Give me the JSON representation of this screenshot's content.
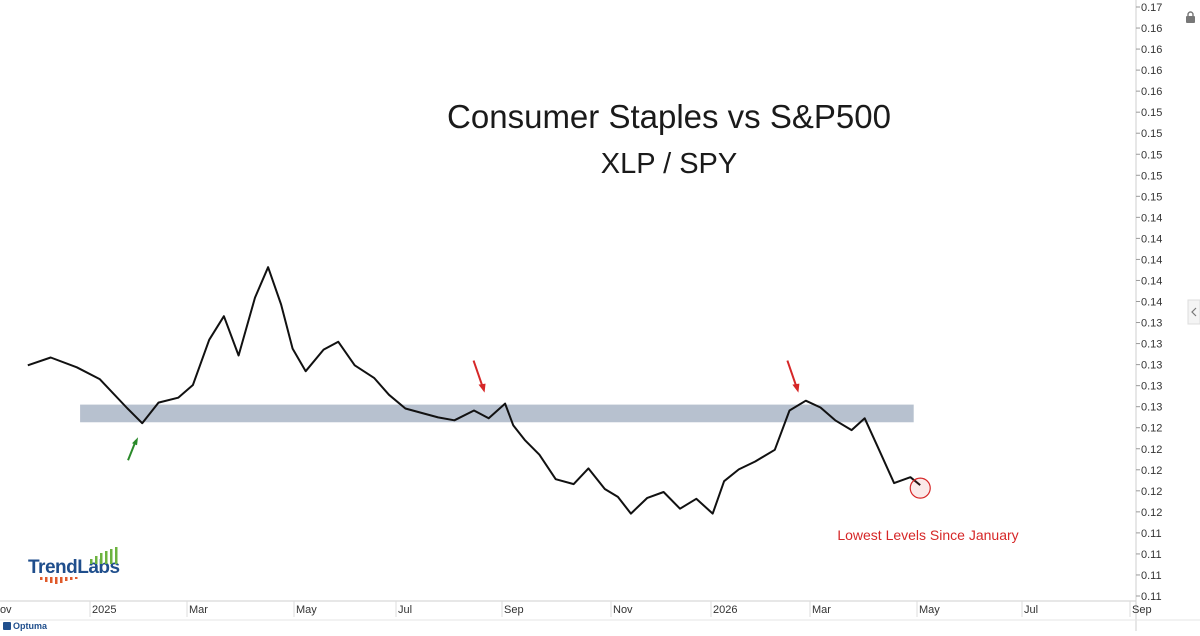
{
  "chart_data": {
    "type": "line",
    "title": "Consumer Staples vs S&P500",
    "subtitle": "XLP / SPY",
    "x_ticks": [
      "Nov",
      "2025",
      "Mar",
      "May",
      "Jul",
      "Sep",
      "Nov",
      "2026",
      "Mar",
      "May",
      "Jul",
      "Sep"
    ],
    "y_ticks": [
      "0.17",
      "0.16",
      "0.16",
      "0.16",
      "0.16",
      "0.15",
      "0.15",
      "0.15",
      "0.15",
      "0.15",
      "0.14",
      "0.14",
      "0.14",
      "0.14",
      "0.14",
      "0.13",
      "0.13",
      "0.13",
      "0.13",
      "0.13",
      "0.12",
      "0.12",
      "0.12",
      "0.12",
      "0.12",
      "0.11",
      "0.11",
      "0.11",
      "0.11"
    ],
    "ylim": [
      0.11,
      0.17
    ],
    "series": [
      {
        "color": "#111111",
        "x": [
          "2024-11-01",
          "2024-11-15",
          "2024-12-01",
          "2024-12-15",
          "2025-01-01",
          "2025-01-10",
          "2025-01-20",
          "2025-02-01",
          "2025-02-10",
          "2025-02-20",
          "2025-03-01",
          "2025-03-10",
          "2025-03-20",
          "2025-03-28",
          "2025-04-05",
          "2025-04-12",
          "2025-04-20",
          "2025-05-01",
          "2025-05-10",
          "2025-05-20",
          "2025-06-01",
          "2025-06-10",
          "2025-06-20",
          "2025-07-01",
          "2025-07-10",
          "2025-07-20",
          "2025-08-01",
          "2025-08-10",
          "2025-08-20",
          "2025-08-25",
          "2025-09-01",
          "2025-09-10",
          "2025-09-20",
          "2025-10-01",
          "2025-10-10",
          "2025-10-20",
          "2025-10-28",
          "2025-11-05",
          "2025-11-15",
          "2025-11-25",
          "2025-12-05",
          "2025-12-15",
          "2025-12-25",
          "2026-01-01",
          "2026-01-10",
          "2026-01-20",
          "2026-02-01",
          "2026-02-10",
          "2026-02-20",
          "2026-03-01",
          "2026-03-10",
          "2026-03-20",
          "2026-03-28",
          "2026-04-05",
          "2026-04-15",
          "2026-04-25",
          "2026-05-01"
        ],
        "values": [
          0.1336,
          0.1344,
          0.1334,
          0.1322,
          0.1292,
          0.1277,
          0.1298,
          0.1303,
          0.1316,
          0.1362,
          0.1386,
          0.1346,
          0.1405,
          0.1436,
          0.1398,
          0.1353,
          0.133,
          0.1352,
          0.136,
          0.1336,
          0.1323,
          0.1306,
          0.1292,
          0.1287,
          0.1283,
          0.128,
          0.129,
          0.1282,
          0.1297,
          0.1275,
          0.126,
          0.1245,
          0.122,
          0.1215,
          0.1231,
          0.121,
          0.1202,
          0.1185,
          0.1201,
          0.1207,
          0.119,
          0.12,
          0.1185,
          0.1218,
          0.123,
          0.1238,
          0.125,
          0.129,
          0.13,
          0.1293,
          0.128,
          0.127,
          0.1282,
          0.1253,
          0.1216,
          0.1222,
          0.1214
        ]
      }
    ],
    "band": {
      "from": 0.1278,
      "to": 0.1296,
      "color": "#b7c1cf",
      "x_from": "2024-12-03",
      "x_to": "2026-04-27"
    },
    "annotations": [
      {
        "text": "Lowest Levels Since January",
        "color": "#d62728"
      }
    ],
    "markers": [
      {
        "kind": "arrow-up",
        "color": "#2a8a2a",
        "x": "2025-01-05"
      },
      {
        "kind": "arrow-down",
        "color": "#d62728",
        "x": "2025-08-05"
      },
      {
        "kind": "arrow-down",
        "color": "#d62728",
        "x": "2026-02-13"
      },
      {
        "kind": "circle",
        "color": "#d62728",
        "x": "2026-05-01",
        "y": 0.1214
      }
    ],
    "grid": false
  },
  "branding": {
    "logo_text": "TrendLabs",
    "credit_text": "Optuma"
  },
  "icons": {
    "lock": "lock-icon",
    "collapse": "chevron-left-icon"
  }
}
